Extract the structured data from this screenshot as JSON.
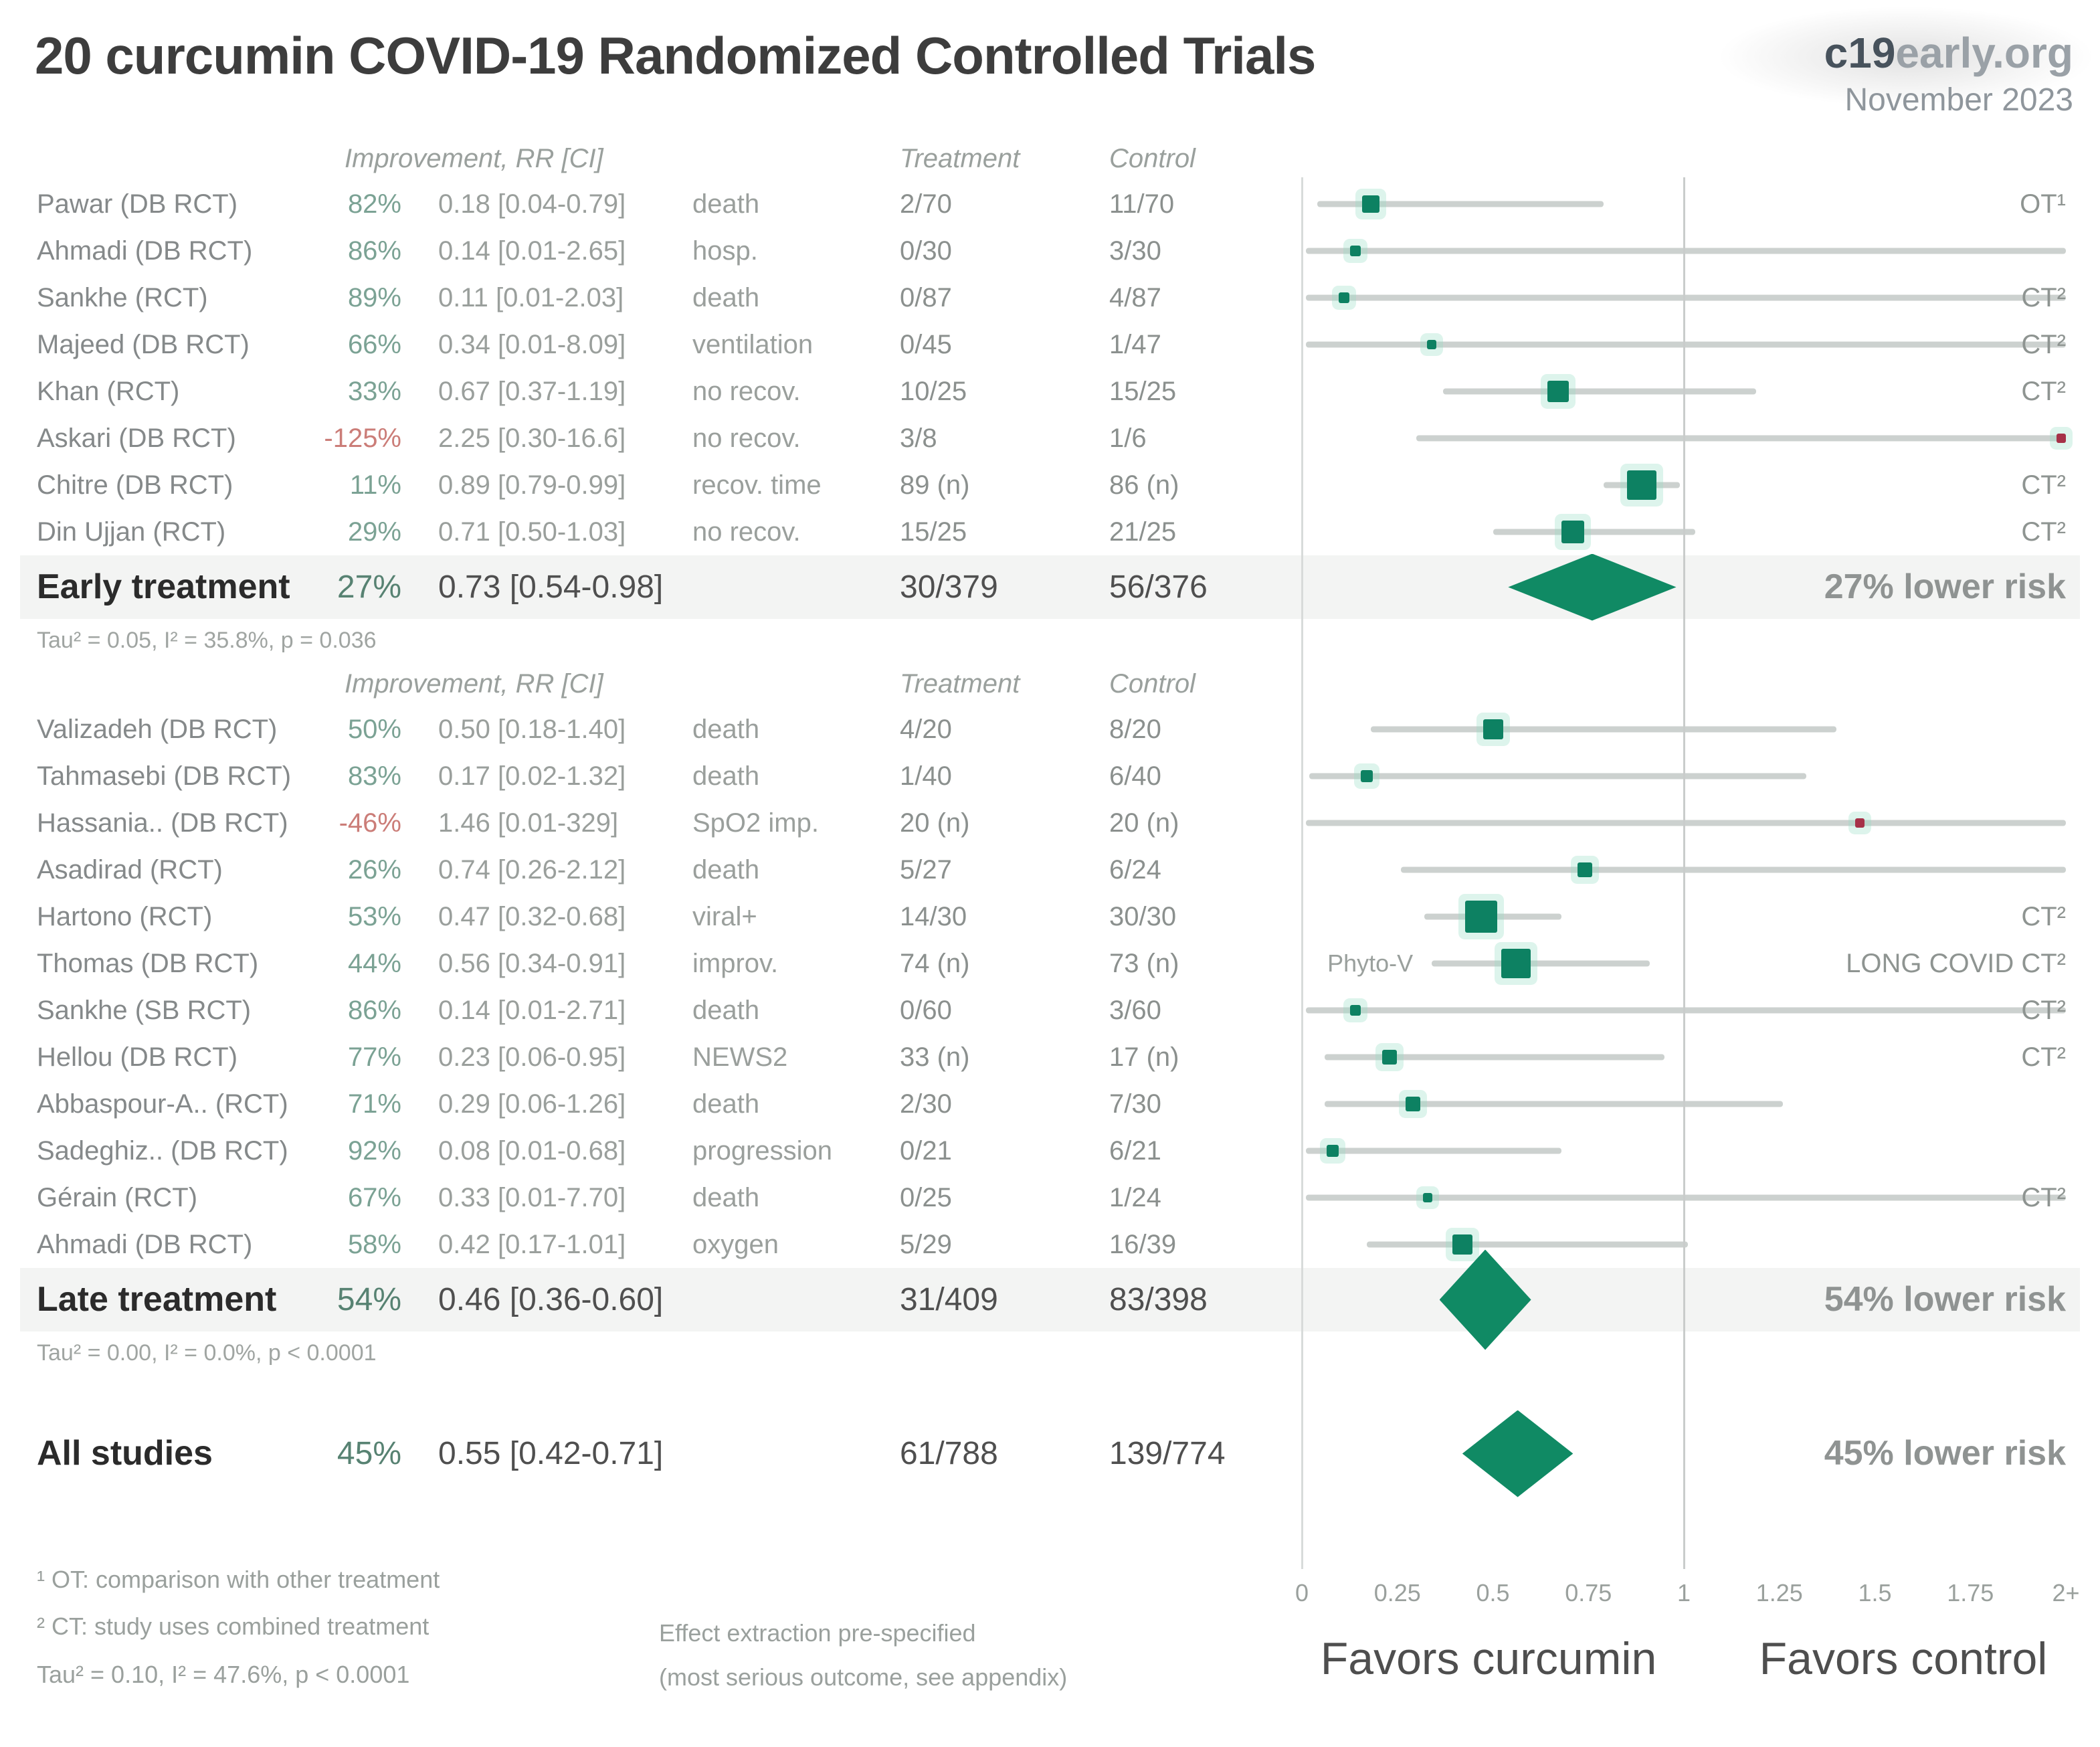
{
  "header": {
    "title": "20 curcumin COVID-19 Randomized Controlled Trials",
    "brand_bold": "c19",
    "brand_rest": "early.org",
    "date": "November 2023"
  },
  "colors": {
    "marker_green": "#0d8162",
    "marker_red": "#a63148",
    "diamond_green": "#108a64",
    "halo": "rgba(150,220,196,0.32)",
    "pct_green": "#7ba294",
    "pct_red": "#cb7d78",
    "summary_pct_green": "#578272",
    "ci_line": "#ccd1cf",
    "band": "#f3f4f3",
    "gridline_zero": "#d8dbda",
    "gridline_one": "#c9cccb"
  },
  "chart_data": {
    "type": "forest",
    "x_axis": {
      "ticks": [
        "0",
        "0.25",
        "0.5",
        "0.75",
        "1",
        "1.25",
        "1.5",
        "1.75",
        "2+"
      ],
      "tick_values": [
        0,
        0.25,
        0.5,
        0.75,
        1,
        1.25,
        1.5,
        1.75,
        2
      ],
      "range_shown": [
        0,
        2
      ],
      "reference_line": 1,
      "favors_left": "Favors curcumin",
      "favors_right": "Favors control"
    },
    "sections": [
      {
        "header": {
          "improvement": "Improvement, RR [CI]",
          "treatment": "Treatment",
          "control": "Control"
        },
        "rows": [
          {
            "name": "Pawar (DB RCT)",
            "pct": "82%",
            "neg": false,
            "rr_text": "0.18 [0.04-0.79]",
            "outcome": "death",
            "treatment": "2/70",
            "control": "11/70",
            "rr": 0.18,
            "ci": [
              0.04,
              0.79
            ],
            "size": 26,
            "red": false,
            "right_label": "OT¹",
            "left_label": ""
          },
          {
            "name": "Ahmadi (DB RCT)",
            "pct": "86%",
            "neg": false,
            "rr_text": "0.14 [0.01-2.65]",
            "outcome": "hosp.",
            "treatment": "0/30",
            "control": "3/30",
            "rr": 0.14,
            "ci": [
              0.01,
              2.65
            ],
            "size": 16,
            "red": false,
            "right_label": "",
            "left_label": ""
          },
          {
            "name": "Sankhe (RCT)",
            "pct": "89%",
            "neg": false,
            "rr_text": "0.11 [0.01-2.03]",
            "outcome": "death",
            "treatment": "0/87",
            "control": "4/87",
            "rr": 0.11,
            "ci": [
              0.01,
              2.03
            ],
            "size": 16,
            "red": false,
            "right_label": "CT²",
            "left_label": ""
          },
          {
            "name": "Majeed (DB RCT)",
            "pct": "66%",
            "neg": false,
            "rr_text": "0.34 [0.01-8.09]",
            "outcome": "ventilation",
            "treatment": "0/45",
            "control": "1/47",
            "rr": 0.34,
            "ci": [
              0.01,
              8.09
            ],
            "size": 14,
            "red": false,
            "right_label": "CT²",
            "left_label": ""
          },
          {
            "name": "Khan (RCT)",
            "pct": "33%",
            "neg": false,
            "rr_text": "0.67 [0.37-1.19]",
            "outcome": "no recov.",
            "treatment": "10/25",
            "control": "15/25",
            "rr": 0.67,
            "ci": [
              0.37,
              1.19
            ],
            "size": 32,
            "red": false,
            "right_label": "CT²",
            "left_label": ""
          },
          {
            "name": "Askari (DB RCT)",
            "pct": "-125%",
            "neg": true,
            "rr_text": "2.25 [0.30-16.6]",
            "outcome": "no recov.",
            "treatment": "3/8",
            "control": "1/6",
            "rr": 2.25,
            "ci": [
              0.3,
              16.6
            ],
            "size": 14,
            "red": true,
            "right_label": "",
            "left_label": ""
          },
          {
            "name": "Chitre (DB RCT)",
            "pct": "11%",
            "neg": false,
            "rr_text": "0.89 [0.79-0.99]",
            "outcome": "recov. time",
            "treatment": "89 (n)",
            "control": "86 (n)",
            "rr": 0.89,
            "ci": [
              0.79,
              0.99
            ],
            "size": 44,
            "red": false,
            "right_label": "CT²",
            "left_label": ""
          },
          {
            "name": "Din Ujjan (RCT)",
            "pct": "29%",
            "neg": false,
            "rr_text": "0.71 [0.50-1.03]",
            "outcome": "no recov.",
            "treatment": "15/25",
            "control": "21/25",
            "rr": 0.71,
            "ci": [
              0.5,
              1.03
            ],
            "size": 34,
            "red": false,
            "right_label": "CT²",
            "left_label": ""
          }
        ],
        "summary": {
          "name": "Early treatment",
          "pct": "27%",
          "rr_text": "0.73 [0.54-0.98]",
          "treatment": "30/379",
          "control": "56/376",
          "rr": 0.73,
          "ci": [
            0.54,
            0.98
          ],
          "risk_label": "27% lower risk"
        },
        "tau_note": "Tau² = 0.05, I² = 35.8%, p = 0.036"
      },
      {
        "header": {
          "improvement": "Improvement, RR [CI]",
          "treatment": "Treatment",
          "control": "Control"
        },
        "rows": [
          {
            "name": "Valizadeh (DB RCT)",
            "pct": "50%",
            "neg": false,
            "rr_text": "0.50 [0.18-1.40]",
            "outcome": "death",
            "treatment": "4/20",
            "control": "8/20",
            "rr": 0.5,
            "ci": [
              0.18,
              1.4
            ],
            "size": 30,
            "red": false,
            "right_label": "",
            "left_label": ""
          },
          {
            "name": "Tahmasebi (DB RCT)",
            "pct": "83%",
            "neg": false,
            "rr_text": "0.17 [0.02-1.32]",
            "outcome": "death",
            "treatment": "1/40",
            "control": "6/40",
            "rr": 0.17,
            "ci": [
              0.02,
              1.32
            ],
            "size": 18,
            "red": false,
            "right_label": "",
            "left_label": ""
          },
          {
            "name": "Hassania.. (DB RCT)",
            "pct": "-46%",
            "neg": true,
            "rr_text": "1.46 [0.01-329]",
            "outcome": "SpO2 imp.",
            "treatment": "20 (n)",
            "control": "20 (n)",
            "rr": 1.46,
            "ci": [
              0.01,
              329
            ],
            "size": 14,
            "red": true,
            "right_label": "",
            "left_label": ""
          },
          {
            "name": "Asadirad (RCT)",
            "pct": "26%",
            "neg": false,
            "rr_text": "0.74 [0.26-2.12]",
            "outcome": "death",
            "treatment": "5/27",
            "control": "6/24",
            "rr": 0.74,
            "ci": [
              0.26,
              2.12
            ],
            "size": 22,
            "red": false,
            "right_label": "",
            "left_label": ""
          },
          {
            "name": "Hartono (RCT)",
            "pct": "53%",
            "neg": false,
            "rr_text": "0.47 [0.32-0.68]",
            "outcome": "viral+",
            "treatment": "14/30",
            "control": "30/30",
            "rr": 0.47,
            "ci": [
              0.32,
              0.68
            ],
            "size": 48,
            "red": false,
            "right_label": "CT²",
            "left_label": ""
          },
          {
            "name": "Thomas (DB RCT)",
            "pct": "44%",
            "neg": false,
            "rr_text": "0.56 [0.34-0.91]",
            "outcome": "improv.",
            "treatment": "74 (n)",
            "control": "73 (n)",
            "rr": 0.56,
            "ci": [
              0.34,
              0.91
            ],
            "size": 44,
            "red": false,
            "right_label": "LONG COVID CT²",
            "left_label": "Phyto-V"
          },
          {
            "name": "Sankhe (SB RCT)",
            "pct": "86%",
            "neg": false,
            "rr_text": "0.14 [0.01-2.71]",
            "outcome": "death",
            "treatment": "0/60",
            "control": "3/60",
            "rr": 0.14,
            "ci": [
              0.01,
              2.71
            ],
            "size": 16,
            "red": false,
            "right_label": "CT²",
            "left_label": ""
          },
          {
            "name": "Hellou (DB RCT)",
            "pct": "77%",
            "neg": false,
            "rr_text": "0.23 [0.06-0.95]",
            "outcome": "NEWS2",
            "treatment": "33 (n)",
            "control": "17 (n)",
            "rr": 0.23,
            "ci": [
              0.06,
              0.95
            ],
            "size": 22,
            "red": false,
            "right_label": "CT²",
            "left_label": ""
          },
          {
            "name": "Abbaspour-A.. (RCT)",
            "pct": "71%",
            "neg": false,
            "rr_text": "0.29 [0.06-1.26]",
            "outcome": "death",
            "treatment": "2/30",
            "control": "7/30",
            "rr": 0.29,
            "ci": [
              0.06,
              1.26
            ],
            "size": 22,
            "red": false,
            "right_label": "",
            "left_label": ""
          },
          {
            "name": "Sadeghiz.. (DB RCT)",
            "pct": "92%",
            "neg": false,
            "rr_text": "0.08 [0.01-0.68]",
            "outcome": "progression",
            "treatment": "0/21",
            "control": "6/21",
            "rr": 0.08,
            "ci": [
              0.01,
              0.68
            ],
            "size": 18,
            "red": false,
            "right_label": "",
            "left_label": ""
          },
          {
            "name": "Gérain (RCT)",
            "pct": "67%",
            "neg": false,
            "rr_text": "0.33 [0.01-7.70]",
            "outcome": "death",
            "treatment": "0/25",
            "control": "1/24",
            "rr": 0.33,
            "ci": [
              0.01,
              7.7
            ],
            "size": 14,
            "red": false,
            "right_label": "CT²",
            "left_label": ""
          },
          {
            "name": "Ahmadi (DB RCT)",
            "pct": "58%",
            "neg": false,
            "rr_text": "0.42 [0.17-1.01]",
            "outcome": "oxygen",
            "treatment": "5/29",
            "control": "16/39",
            "rr": 0.42,
            "ci": [
              0.17,
              1.01
            ],
            "size": 30,
            "red": false,
            "right_label": "",
            "left_label": ""
          }
        ],
        "summary": {
          "name": "Late treatment",
          "pct": "54%",
          "rr_text": "0.46 [0.36-0.60]",
          "treatment": "31/409",
          "control": "83/398",
          "rr": 0.46,
          "ci": [
            0.36,
            0.6
          ],
          "risk_label": "54% lower risk"
        },
        "tau_note": "Tau² = 0.00, I² = 0.0%, p < 0.0001"
      }
    ],
    "all_studies": {
      "name": "All studies",
      "pct": "45%",
      "rr_text": "0.55 [0.42-0.71]",
      "treatment": "61/788",
      "control": "139/774",
      "rr": 0.55,
      "ci": [
        0.42,
        0.71
      ],
      "risk_label": "45% lower risk"
    }
  },
  "footnotes": {
    "fn1": "¹ OT: comparison with other treatment",
    "fn2": "² CT: study uses combined treatment",
    "tau_all": "Tau² = 0.10, I² = 47.6%, p < 0.0001",
    "effect1": "Effect extraction pre-specified",
    "effect2": "(most serious outcome, see appendix)"
  }
}
